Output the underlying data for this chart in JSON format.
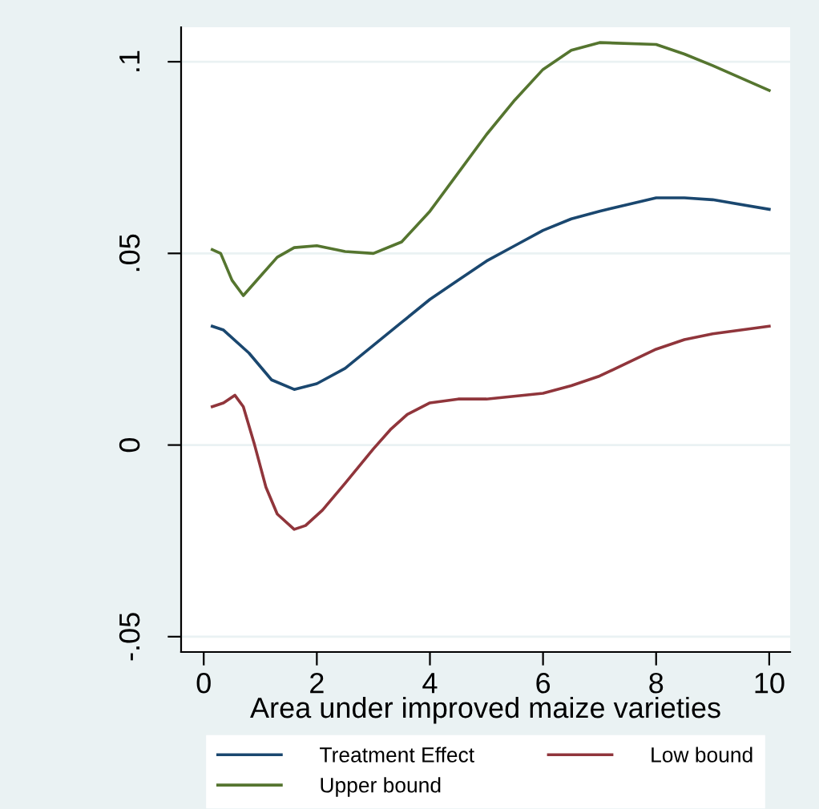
{
  "chart_data": {
    "type": "line",
    "xlabel": "Area under improved maize varieties",
    "xlim": [
      -0.4,
      10.37
    ],
    "xticks": [
      0,
      2,
      4,
      6,
      8,
      10
    ],
    "ylim": [
      -0.054,
      0.109
    ],
    "yticks": [
      {
        "value": -0.05,
        "label": "-.05"
      },
      0,
      {
        "value": 0.05,
        "label": ".05"
      },
      {
        "value": 0.1,
        "label": ".1"
      }
    ],
    "grid": "y",
    "legend": "bottom",
    "line_style": "solid",
    "series": [
      {
        "name": "Treatment Effect",
        "color": "#1a476f",
        "x": [
          0.15,
          0.35,
          0.8,
          1.2,
          1.6,
          2,
          2.5,
          3,
          3.5,
          4,
          4.5,
          5,
          5.5,
          6,
          6.5,
          7,
          8,
          8.5,
          9,
          10
        ],
        "values": [
          0.031,
          0.03,
          0.024,
          0.017,
          0.0145,
          0.016,
          0.02,
          0.026,
          0.032,
          0.038,
          0.043,
          0.048,
          0.052,
          0.056,
          0.059,
          0.061,
          0.0645,
          0.0645,
          0.064,
          0.0615
        ]
      },
      {
        "name": "Low bound",
        "color": "#90353b",
        "x": [
          0.15,
          0.35,
          0.55,
          0.7,
          0.9,
          1.1,
          1.3,
          1.6,
          1.8,
          2.1,
          2.5,
          3,
          3.3,
          3.6,
          4,
          4.5,
          5,
          6,
          6.5,
          7,
          8,
          8.5,
          9,
          10
        ],
        "values": [
          0.01,
          0.011,
          0.013,
          0.01,
          0.0,
          -0.011,
          -0.018,
          -0.022,
          -0.021,
          -0.017,
          -0.01,
          -0.001,
          0.004,
          0.008,
          0.011,
          0.012,
          0.012,
          0.0135,
          0.0155,
          0.018,
          0.025,
          0.0275,
          0.029,
          0.031
        ]
      },
      {
        "name": "Upper bound",
        "color": "#55752f",
        "x": [
          0.15,
          0.3,
          0.5,
          0.7,
          1.0,
          1.3,
          1.6,
          2,
          2.5,
          3,
          3.5,
          4,
          4.5,
          5,
          5.5,
          6,
          6.5,
          7,
          8,
          8.5,
          9,
          10
        ],
        "values": [
          0.051,
          0.05,
          0.043,
          0.039,
          0.044,
          0.049,
          0.0515,
          0.052,
          0.0505,
          0.05,
          0.053,
          0.061,
          0.071,
          0.081,
          0.09,
          0.098,
          0.103,
          0.105,
          0.1045,
          0.102,
          0.099,
          0.0925
        ]
      }
    ]
  }
}
